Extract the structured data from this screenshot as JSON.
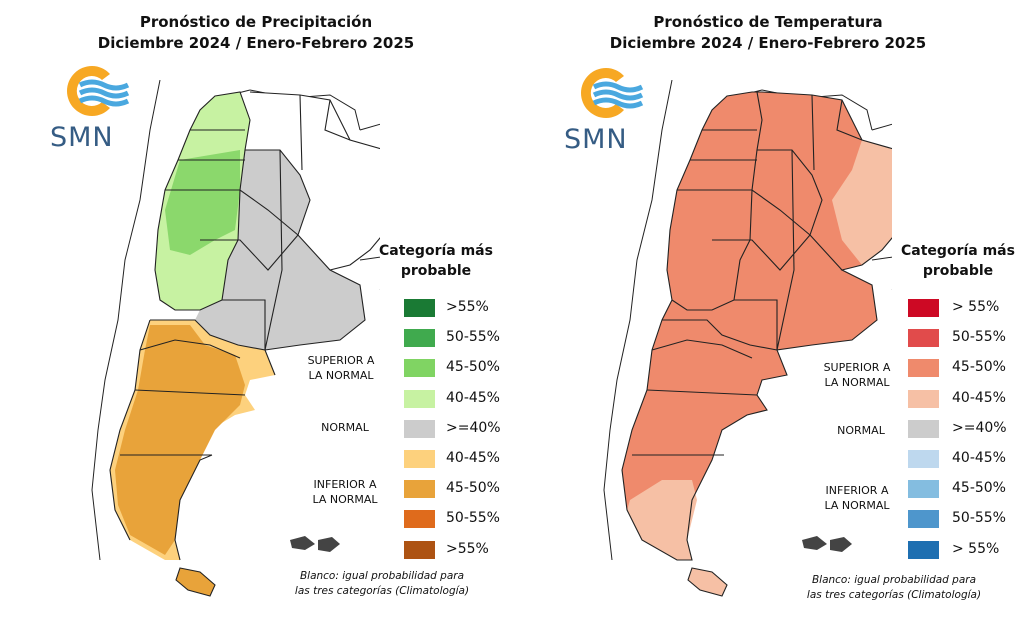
{
  "precipitation": {
    "title_line1": "Pronóstico de Precipitación",
    "title_line2": "Diciembre 2024 / Enero-Febrero 2025",
    "logo_text": "SMN",
    "legend_title_line1": "Categoría más",
    "legend_title_line2": "probable",
    "group_superior_1": "SUPERIOR A",
    "group_superior_2": "LA NORMAL",
    "group_normal": "NORMAL",
    "group_inferior_1": "INFERIOR A",
    "group_inferior_2": "LA NORMAL",
    "legend": [
      {
        "label": ">55%",
        "color": "#1a7a34"
      },
      {
        "label": "50-55%",
        "color": "#40aa4e"
      },
      {
        "label": "45-50%",
        "color": "#80d463"
      },
      {
        "label": "40-45%",
        "color": "#c7f2a2"
      },
      {
        "label": ">=40%",
        "color": "#cccccc"
      },
      {
        "label": "40-45%",
        "color": "#fdd17d"
      },
      {
        "label": "45-50%",
        "color": "#e8a33a"
      },
      {
        "label": "50-55%",
        "color": "#df6b1c"
      },
      {
        "label": ">55%",
        "color": "#ad5313"
      }
    ],
    "note_line1": "Blanco: igual probabilidad para",
    "note_line2": "las tres categorías (Climatología)"
  },
  "temperature": {
    "title_line1": "Pronóstico de Temperatura",
    "title_line2": "Diciembre 2024 / Enero-Febrero 2025",
    "logo_text": "SMN",
    "legend_title_line1": "Categoría más",
    "legend_title_line2": "probable",
    "group_superior_1": "SUPERIOR A",
    "group_superior_2": "LA NORMAL",
    "group_normal": "NORMAL",
    "group_inferior_1": "INFERIOR A",
    "group_inferior_2": "LA NORMAL",
    "legend": [
      {
        "label": "> 55%",
        "color": "#cd0924"
      },
      {
        "label": "50-55%",
        "color": "#e14b4b"
      },
      {
        "label": "45-50%",
        "color": "#ef8a6c"
      },
      {
        "label": "40-45%",
        "color": "#f6c0a5"
      },
      {
        "label": ">=40%",
        "color": "#cccccc"
      },
      {
        "label": "40-45%",
        "color": "#bed8ee"
      },
      {
        "label": "45-50%",
        "color": "#84bde0"
      },
      {
        "label": "50-55%",
        "color": "#4e96cc"
      },
      {
        "label": "> 55%",
        "color": "#1e6fb1"
      }
    ],
    "note_line1": "Blanco: igual probabilidad para",
    "note_line2": "las tres categorías (Climatología)"
  },
  "colors": {
    "logo_orange": "#f7a823",
    "logo_blue": "#4aa8df",
    "logo_text": "#355c84"
  }
}
